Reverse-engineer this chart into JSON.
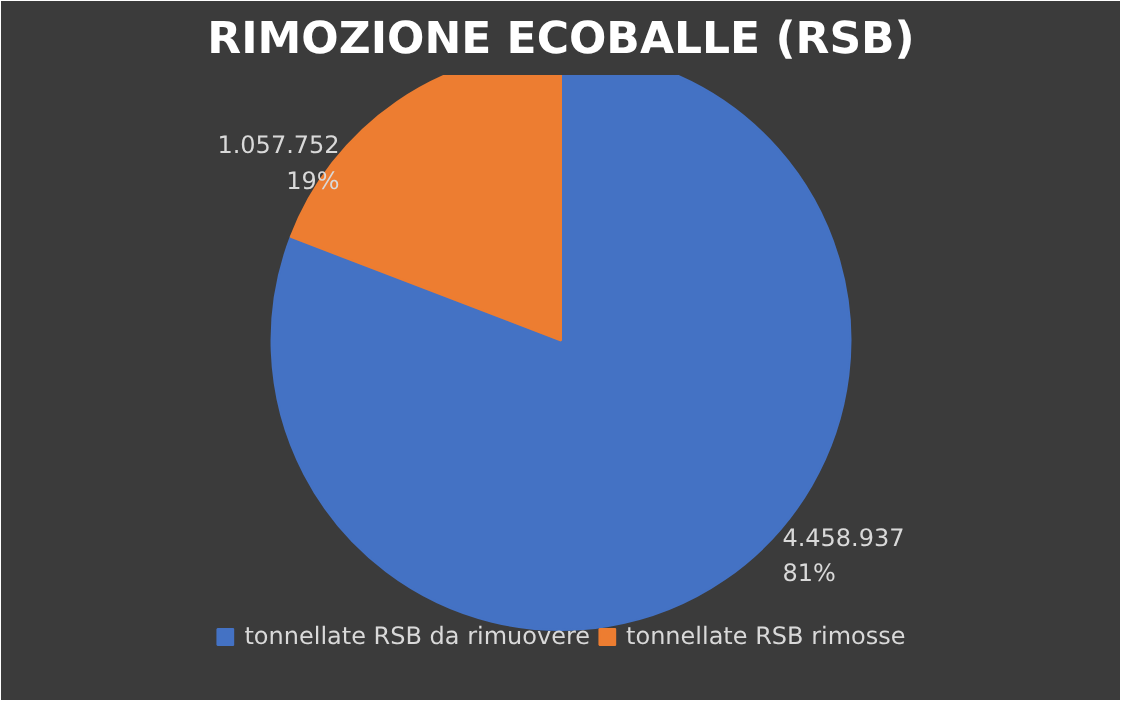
{
  "chart_data": {
    "type": "pie",
    "title": "RIMOZIONE ECOBALLE (RSB)",
    "categories": [
      "tonnellate RSB da rimuovere",
      "tonnellate RSB rimosse"
    ],
    "values": [
      4458937,
      1057752
    ],
    "colors": [
      "#4472c4",
      "#ed7d31"
    ],
    "value_labels": [
      "4.458.937\n81%",
      "1.057.752\n19%"
    ],
    "legend": "bottom"
  }
}
